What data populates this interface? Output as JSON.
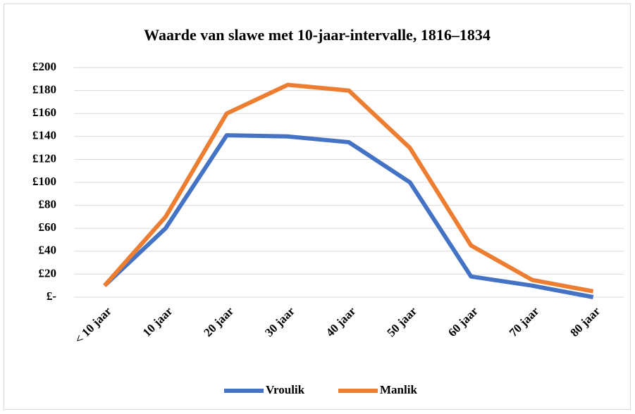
{
  "chart_data": {
    "type": "line",
    "title": "Waarde van slawe met 10-jaar-intervalle, 1816–1834",
    "categories": [
      "< 10 jaar",
      "10 jaar",
      "20 jaar",
      "30 jaar",
      "40 jaar",
      "50 jaar",
      "60 jaar",
      "70 jaar",
      "80 jaar"
    ],
    "series": [
      {
        "name": "Vroulik",
        "color": "#4472c4",
        "values": [
          10,
          60,
          141,
          140,
          135,
          100,
          18,
          10,
          0
        ]
      },
      {
        "name": "Manlik",
        "color": "#ed7d31",
        "values": [
          10,
          70,
          160,
          185,
          180,
          130,
          45,
          15,
          5
        ]
      }
    ],
    "ylim": [
      0,
      200
    ],
    "yticks": [
      {
        "value": 0,
        "label": "£-"
      },
      {
        "value": 20,
        "label": "£20"
      },
      {
        "value": 40,
        "label": "£40"
      },
      {
        "value": 60,
        "label": "£60"
      },
      {
        "value": 80,
        "label": "£80"
      },
      {
        "value": 100,
        "label": "£100"
      },
      {
        "value": 120,
        "label": "£120"
      },
      {
        "value": 140,
        "label": "£140"
      },
      {
        "value": 160,
        "label": "£160"
      },
      {
        "value": 180,
        "label": "£180"
      },
      {
        "value": 200,
        "label": "£200"
      }
    ],
    "grid": true,
    "legend": "bottom"
  }
}
